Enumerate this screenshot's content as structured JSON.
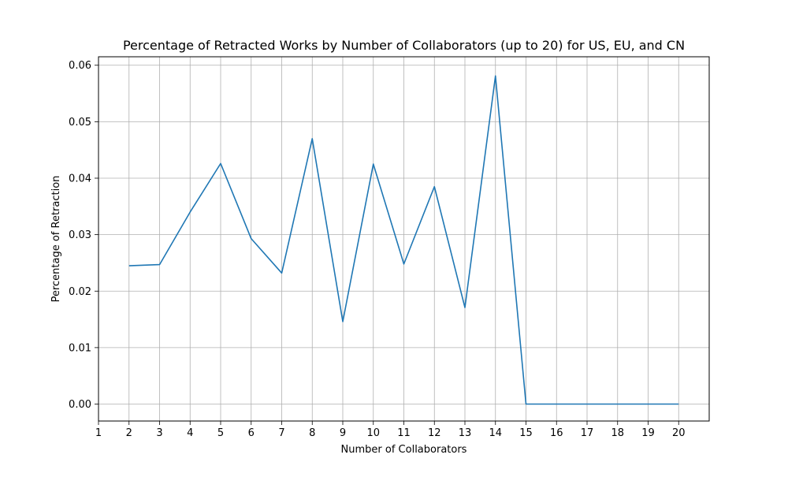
{
  "chart_data": {
    "type": "line",
    "title": "Percentage of Retracted Works by Number of Collaborators (up to 20) for US, EU, and CN",
    "xlabel": "Number of Collaborators",
    "ylabel": "Percentage of Retraction",
    "xlim": [
      1,
      21
    ],
    "ylim": [
      -0.003,
      0.0615
    ],
    "x_ticks": [
      1,
      2,
      3,
      4,
      5,
      6,
      7,
      8,
      9,
      10,
      11,
      12,
      13,
      14,
      15,
      16,
      17,
      18,
      19,
      20
    ],
    "y_ticks": [
      0.0,
      0.01,
      0.02,
      0.03,
      0.04,
      0.05,
      0.06
    ],
    "y_tick_labels": [
      "0.00",
      "0.01",
      "0.02",
      "0.03",
      "0.04",
      "0.05",
      "0.06"
    ],
    "grid": true,
    "legend": "none",
    "series": [
      {
        "color": "#1f77b4",
        "x": [
          2,
          3,
          4,
          5,
          6,
          7,
          8,
          9,
          10,
          11,
          12,
          13,
          14,
          15,
          16,
          17,
          18,
          19,
          20
        ],
        "y": [
          0.0245,
          0.0247,
          0.034,
          0.0426,
          0.0293,
          0.0232,
          0.047,
          0.0146,
          0.0425,
          0.0248,
          0.0385,
          0.0171,
          0.0581,
          0.0,
          0.0,
          0.0,
          0.0,
          0.0,
          0.0
        ]
      }
    ]
  }
}
